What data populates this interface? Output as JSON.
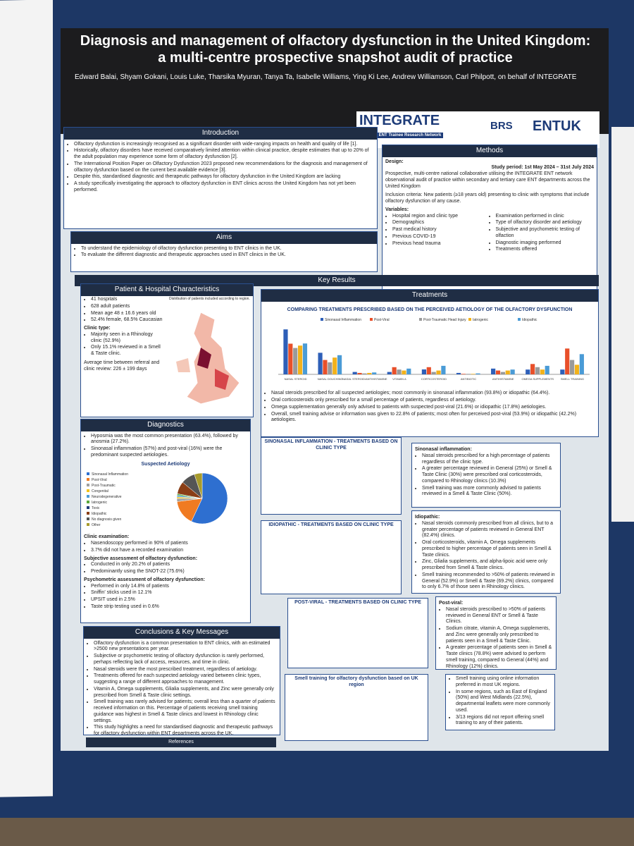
{
  "title": "Diagnosis and management of olfactory dysfunction in the United Kingdom: a multi-centre prospective snapshot audit of practice",
  "authors": "Edward Balai, Shyam Gokani, Louis Luke, Tharsika Myuran, Tanya Ta, Isabelle Williams, Ying Ki Lee, Andrew Williamson, Carl Philpott, on behalf of INTEGRATE",
  "logos": [
    "INTEGRATE",
    "The UK ENT Trainee Research Network",
    "BRS",
    "ENTUK"
  ],
  "introduction": {
    "heading": "Introduction",
    "bullets": [
      "Olfactory dysfunction is increasingly recognised as a significant disorder with wide-ranging impacts on health and quality of life [1].",
      "Historically, olfactory disorders have received comparatively limited attention within clinical practice, despite estimates that up to 20% of the adult population may experience some form of olfactory dysfunction [2].",
      "The International Position Paper on Olfactory Dysfunction 2023 proposed new recommendations for the diagnosis and management of olfactory dysfunction based on the current best available evidence [3].",
      "Despite this, standardised diagnostic and therapeutic pathways for olfactory dysfunction in the United Kingdom are lacking",
      "A study specifically investigating the approach to olfactory dysfunction in ENT clinics across the United Kingdom has not yet been performed."
    ]
  },
  "methods": {
    "heading": "Methods",
    "design_label": "Design:",
    "study_period": "Study period: 1st May 2024 – 31st July 2024",
    "design": "Prospective, multi-centre national collaborative utilising the INTEGRATE ENT network observational audit of practice within secondary and tertiary care ENT departments across the United Kingdom",
    "inclusion": "Inclusion criteria: New patients (≥18 years old) presenting to clinic with symptoms that include olfactory dysfunction of any cause.",
    "variables_label": "Variables:",
    "variables": [
      "Hospital region and clinic type",
      "Demographics",
      "Past medical history",
      "Previous COVID-19",
      "Previous head trauma",
      "Examination performed in clinic",
      "Type of olfactory disorder and aetiology",
      "Subjective and psychometric testing of olfaction",
      "Diagnostic imaging performed",
      "Treatments offered"
    ]
  },
  "aims": {
    "heading": "Aims",
    "bullets": [
      "To understand the epidemiology of olfactory dysfunction presenting to ENT clinics in the UK.",
      "To evaluate the different diagnostic and therapeutic approaches used in ENT clinics in the UK."
    ]
  },
  "key_results": "Key Results",
  "patient": {
    "heading": "Patient & Hospital Characteristics",
    "bullets": [
      "41 hospitals",
      "628 adult patients",
      "Mean age 48 ± 16.6 years old",
      "52.4% female, 68.5% Caucasian"
    ],
    "clinic_label": "Clinic type:",
    "clinic": [
      "Majority seen in a Rhinology clinic (52.9%)",
      "Only 15.1% reviewed in a Smell & Taste clinic."
    ],
    "wait": "Average time between referral and clinic review: 226 ± 199 days",
    "map_title": "Distribution of patients included according to region."
  },
  "diagnostics": {
    "heading": "Diagnostics",
    "bullets": [
      "Hyposmia was the most common presentation (63.4%), followed by anosmia (27.2%).",
      "Sinonasal inflammation (57%) and post-viral (16%) were the predominant suspected aetiologies."
    ],
    "exam_label": "Clinic examination:",
    "exam": [
      "Nasendoscopy performed in 90% of patients",
      "3.7% did not have a recorded examination"
    ],
    "subjective_label": "Subjective assessment of olfactory dysfunction:",
    "subjective": [
      "Conducted in only 20.2% of patients",
      "Predominantly using the SNOT-22 (75.6%)"
    ],
    "psycho_label": "Psychometric assessment of olfactory dysfunction:",
    "psycho": [
      "Performed in only 14.8% of patients",
      "Sniffin' sticks used in 12.1%",
      "UPSIT used in 2.5%",
      "Taste strip testing used in 0.6%"
    ]
  },
  "chart_data": [
    {
      "type": "pie",
      "title": "Suspected Aetiology",
      "categories": [
        "Sinonasal Inflammation",
        "Post-Viral",
        "Post-Traumatic",
        "Congenital",
        "Neurodegenerative",
        "Iatrogenic",
        "Toxic",
        "Idiopathic",
        "No diagnosis given",
        "Other"
      ],
      "values": [
        57,
        16,
        2,
        1,
        1,
        1,
        0,
        8,
        9,
        5
      ],
      "colors": [
        "#2e6fd0",
        "#f07b22",
        "#a0a0a0",
        "#f2c21b",
        "#4a9bd6",
        "#5aa83c",
        "#1f3a78",
        "#8a3e16",
        "#555555",
        "#a89b2c"
      ]
    },
    {
      "type": "bar",
      "title": "COMPARING TREATMENTS PRESCRIBED BASED ON THE PERCEIVED AETIOLOGY OF THE OLFACTORY DYSFUNCTION",
      "categories": [
        "NASAL STEROID",
        "NASAL DOUCHING",
        "NASAL STEROID/ANTIHISTAMINE",
        "VITAMIN A",
        "CORTICOSTEROID",
        "ANTIBIOTIC",
        "ANTIHISTAMINE",
        "OMEGA SUPPLEMENTS",
        "SMELL TRAINING"
      ],
      "ylim": [
        0,
        100
      ],
      "series": [
        {
          "name": "Sinonasal Inflammation",
          "color": "#2e5fb8",
          "values": [
            93.8,
            45,
            5,
            5,
            10.3,
            3,
            12,
            10,
            10
          ]
        },
        {
          "name": "Post-Viral",
          "color": "#e8502a",
          "values": [
            64,
            30,
            3,
            15,
            15,
            1,
            8,
            21.6,
            53.9
          ]
        },
        {
          "name": "Post-Traumatic Head Injury",
          "color": "#9a9a9a",
          "values": [
            55,
            25,
            2,
            10,
            5,
            1,
            5,
            15,
            30
          ]
        },
        {
          "name": "Iatrogenic",
          "color": "#f2b21b",
          "values": [
            60,
            35,
            3,
            8,
            8,
            1,
            8,
            10,
            20
          ]
        },
        {
          "name": "Idiopathic",
          "color": "#4a9bd6",
          "values": [
            64.4,
            40,
            4,
            12,
            17.8,
            2,
            10,
            17.8,
            42.2
          ]
        }
      ]
    }
  ],
  "treatments": {
    "heading": "Treatments",
    "bullets": [
      "Nasal steroids prescribed for all suspected aetiologies; most commonly in sinonasal inflammation (93.8%) or idiopathic (64.4%).",
      "Oral corticosteroids only prescribed for a small percentage of patients, regardless of aetiology.",
      "Omega supplementation generally only advised to patients with suspected post-viral (21.6%) or idiopathic (17.8%) aetiologies.",
      "Overall, smell training advise or information was given to 22.8% of patients; most often for perceived post-viral (53.9%) or idiopathic (42.2%) aetiologies."
    ]
  },
  "subcharts": [
    "SINONASAL INFLAMMATION - TREATMENTS BASED ON CLINIC TYPE",
    "IDIOPATHIC - TREATMENTS BASED ON CLINIC TYPE",
    "POST-VIRAL - TREATMENTS BASED ON CLINIC TYPE",
    "Smell training for olfactory dysfunction based on UK region"
  ],
  "findings": [
    {
      "label": "Sinonasal inflammation:",
      "bullets": [
        "Nasal steroids prescribed for a high percentage of patients regardless of the clinic type.",
        "A greater percentage reviewed in General (25%) or Smell & Taste Clinic (30%) were prescribed oral corticosteroids, compared to Rhinology clinics (10.3%)",
        "Smell training was more commonly advised to patients reviewed in a Smell & Taste Clinic (50%)."
      ]
    },
    {
      "label": "Idiopathic:",
      "bullets": [
        "Nasal steroids commonly prescribed from all clinics, but to a greater percentage of patients reviewed in General ENT (82.4%) clinics.",
        "Oral corticosteroids, vitamin A, Omega supplements prescribed to higher percentage of patients seen in Smell & Taste clinics.",
        "Zinc, Glialia supplements, and alpha-lipoic acid were only prescribed from Smell & Taste clinics.",
        "Smell training recommended to >50% of patients reviewed in General (52.9%) or Smell & Taste (69.2%) clinics, compared to only 6.7% of those seen in Rhinology clinics."
      ]
    },
    {
      "label": "Post-viral:",
      "bullets": [
        "Nasal steroids prescribed to >50% of patients reviewed in General ENT or Smell & Taste Clinics.",
        "Sodium citrate, vitamin A, Omega supplements, and Zinc were generally only prescribed to patients seen in a Smell & Taste Clinic.",
        "A greater percentage of patients seen in Smell & Taste clinics (78.8%) were advised to perform smell training, compared to General (44%) and Rhinology (12%) clinics."
      ]
    },
    {
      "label": "",
      "bullets": [
        "Smell training using online information preferred in most UK regions.",
        "In some regions, such as East of England (50%) and West Midlands (22.5%), departmental leaflets were more commonly used.",
        "3/13 regions did not report offering smell training to any of their patients."
      ]
    }
  ],
  "conclusions": {
    "heading": "Conclusions & Key Messages",
    "bullets": [
      "Olfactory dysfunction is a common presentation to ENT clinics, with an estimated >2500 new presentations per year.",
      "Subjective or psychometric testing of olfactory dysfunction is rarely performed, perhaps reflecting lack of access, resources, and time in clinic.",
      "Nasal steroids were the most prescribed treatment, regardless of aetiology.",
      "Treatments offered for each suspected aetiology varied between clinic types, suggesting a range of different approaches to management.",
      "Vitamin A, Omega supplements, Glialia supplements, and Zinc were generally only prescribed from Smell & Taste clinic settings.",
      "Smell training was rarely advised for patients; overall less than a quarter of patients received information on this. Percentage of patients receiving smell training guidance was highest in Smell & Taste clinics and lowest in Rhinology clinic settings.",
      "This study highlights a need for standardised diagnostic and therapeutic pathways for olfactory dysfunction within ENT departments across the UK."
    ]
  },
  "references": "References"
}
